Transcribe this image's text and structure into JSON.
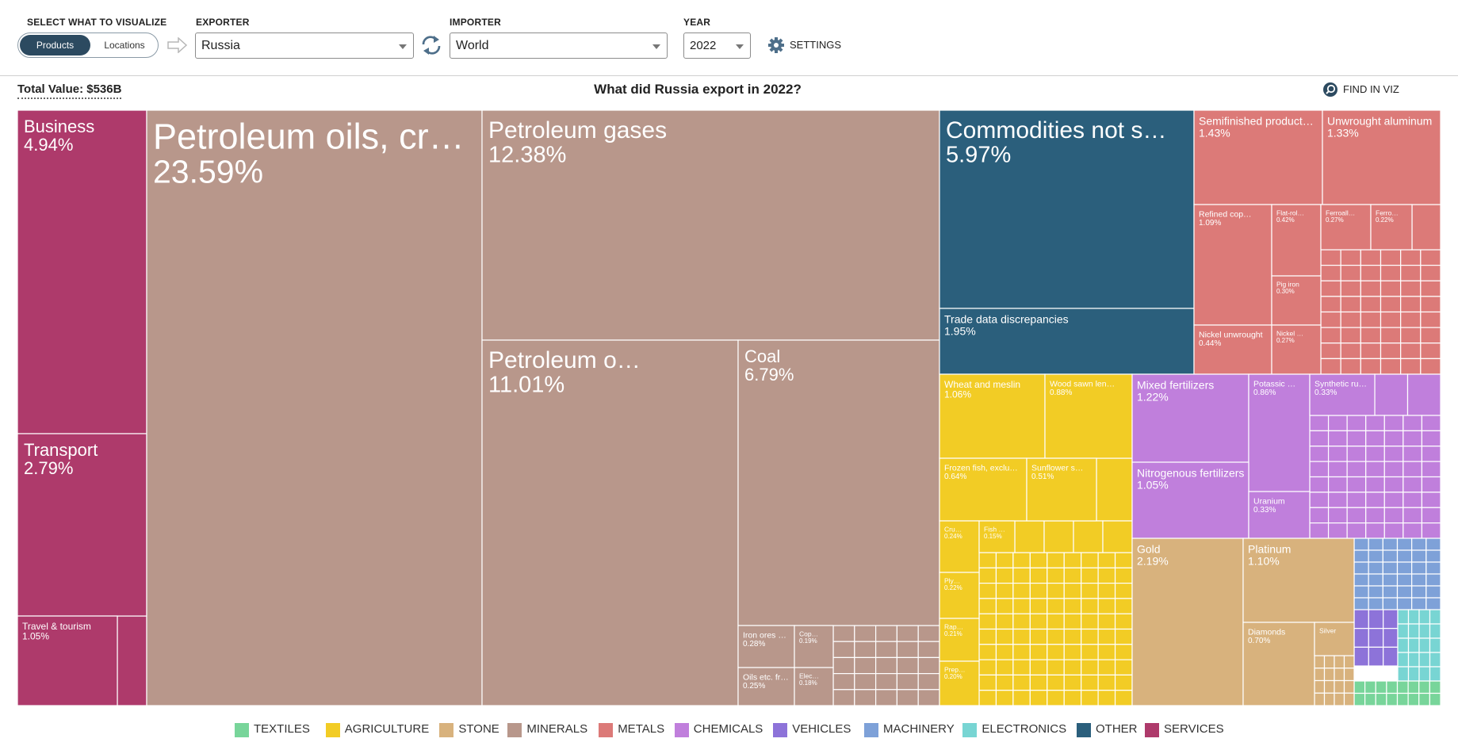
{
  "controls": {
    "visualize_label": "SELECT WHAT TO VISUALIZE",
    "toggle_products": "Products",
    "toggle_locations": "Locations",
    "exporter_label": "EXPORTER",
    "exporter_value": "Russia",
    "importer_label": "IMPORTER",
    "importer_value": "World",
    "year_label": "YEAR",
    "year_value": "2022",
    "settings_label": "SETTINGS"
  },
  "header": {
    "total_value": "Total Value: $536B",
    "title": "What did Russia export in 2022?",
    "find_in_viz": "FIND IN VIZ"
  },
  "colors": {
    "services": "#ae3a6b",
    "minerals": "#b8978b",
    "other": "#2b5f7c",
    "metals": "#dc7a78",
    "agriculture": "#f2cc25",
    "chemicals": "#c07fdc",
    "stone": "#d8b27d",
    "vehicles": "#8d73d9",
    "machinery": "#7ea1d8",
    "electronics": "#78d5d3",
    "textiles": "#78d59a",
    "nav_blue": "#2c4a60"
  },
  "legend": [
    {
      "label": "TEXTILES",
      "color": "#78d59a"
    },
    {
      "label": "AGRICULTURE",
      "color": "#f2cc25"
    },
    {
      "label": "STONE",
      "color": "#d8b27d"
    },
    {
      "label": "MINERALS",
      "color": "#b8978b"
    },
    {
      "label": "METALS",
      "color": "#dc7a78"
    },
    {
      "label": "CHEMICALS",
      "color": "#c07fdc"
    },
    {
      "label": "VEHICLES",
      "color": "#8d73d9"
    },
    {
      "label": "MACHINERY",
      "color": "#7ea1d8"
    },
    {
      "label": "ELECTRONICS",
      "color": "#78d5d3"
    },
    {
      "label": "OTHER",
      "color": "#2b5f7c"
    },
    {
      "label": "SERVICES",
      "color": "#ae3a6b"
    }
  ],
  "chart_data": {
    "type": "treemap",
    "title": "What did Russia export in 2022?",
    "unit": "% of total export value",
    "items": [
      {
        "label": "Business",
        "value": 4.94,
        "sector": "SERVICES"
      },
      {
        "label": "Transport",
        "value": 2.79,
        "sector": "SERVICES"
      },
      {
        "label": "Travel & tourism",
        "value": 1.05,
        "sector": "SERVICES"
      },
      {
        "label": "Petroleum oils, cr…",
        "value": 23.59,
        "sector": "MINERALS"
      },
      {
        "label": "Petroleum gases",
        "value": 12.38,
        "sector": "MINERALS"
      },
      {
        "label": "Petroleum o…",
        "value": 11.01,
        "sector": "MINERALS"
      },
      {
        "label": "Coal",
        "value": 6.79,
        "sector": "MINERALS"
      },
      {
        "label": "Iron ores …",
        "value": 0.28,
        "sector": "MINERALS"
      },
      {
        "label": "Cop…",
        "value": 0.19,
        "sector": "MINERALS"
      },
      {
        "label": "Oils etc. fr…",
        "value": 0.25,
        "sector": "MINERALS"
      },
      {
        "label": "Elec…",
        "value": 0.18,
        "sector": "MINERALS"
      },
      {
        "label": "Commodities not s…",
        "value": 5.97,
        "sector": "OTHER"
      },
      {
        "label": "Trade data discrepancies",
        "value": 1.95,
        "sector": "OTHER"
      },
      {
        "label": "Semifinished product…",
        "value": 1.43,
        "sector": "METALS"
      },
      {
        "label": "Unwrought aluminum",
        "value": 1.33,
        "sector": "METALS"
      },
      {
        "label": "Refined cop…",
        "value": 1.09,
        "sector": "METALS"
      },
      {
        "label": "Flat-rol…",
        "value": 0.42,
        "sector": "METALS"
      },
      {
        "label": "Ferroall…",
        "value": 0.27,
        "sector": "METALS"
      },
      {
        "label": "Ferro…",
        "value": 0.22,
        "sector": "METALS"
      },
      {
        "label": "Pig iron",
        "value": 0.3,
        "sector": "METALS"
      },
      {
        "label": "Nickel unwrought",
        "value": 0.44,
        "sector": "METALS"
      },
      {
        "label": "Nickel …",
        "value": 0.27,
        "sector": "METALS"
      },
      {
        "label": "Wheat and meslin",
        "value": 1.06,
        "sector": "AGRICULTURE"
      },
      {
        "label": "Wood sawn len…",
        "value": 0.88,
        "sector": "AGRICULTURE"
      },
      {
        "label": "Frozen fish, exclu…",
        "value": 0.64,
        "sector": "AGRICULTURE"
      },
      {
        "label": "Sunflower s…",
        "value": 0.51,
        "sector": "AGRICULTURE"
      },
      {
        "label": "Cru…",
        "value": 0.24,
        "sector": "AGRICULTURE"
      },
      {
        "label": "Fish …",
        "value": 0.15,
        "sector": "AGRICULTURE"
      },
      {
        "label": "Ply…",
        "value": 0.22,
        "sector": "AGRICULTURE"
      },
      {
        "label": "Rap…",
        "value": 0.21,
        "sector": "AGRICULTURE"
      },
      {
        "label": "Prep…",
        "value": 0.2,
        "sector": "AGRICULTURE"
      },
      {
        "label": "Mixed fertilizers",
        "value": 1.22,
        "sector": "CHEMICALS"
      },
      {
        "label": "Potassic …",
        "value": 0.86,
        "sector": "CHEMICALS"
      },
      {
        "label": "Synthetic ru…",
        "value": 0.33,
        "sector": "CHEMICALS"
      },
      {
        "label": "Nitrogenous fertilizers",
        "value": 1.05,
        "sector": "CHEMICALS"
      },
      {
        "label": "Uranium",
        "value": 0.33,
        "sector": "CHEMICALS"
      },
      {
        "label": "Gold",
        "value": 2.19,
        "sector": "STONE"
      },
      {
        "label": "Platinum",
        "value": 1.1,
        "sector": "STONE"
      },
      {
        "label": "Diamonds",
        "value": 0.7,
        "sector": "STONE"
      },
      {
        "label": "Silver",
        "value": null,
        "sector": "STONE"
      }
    ]
  }
}
